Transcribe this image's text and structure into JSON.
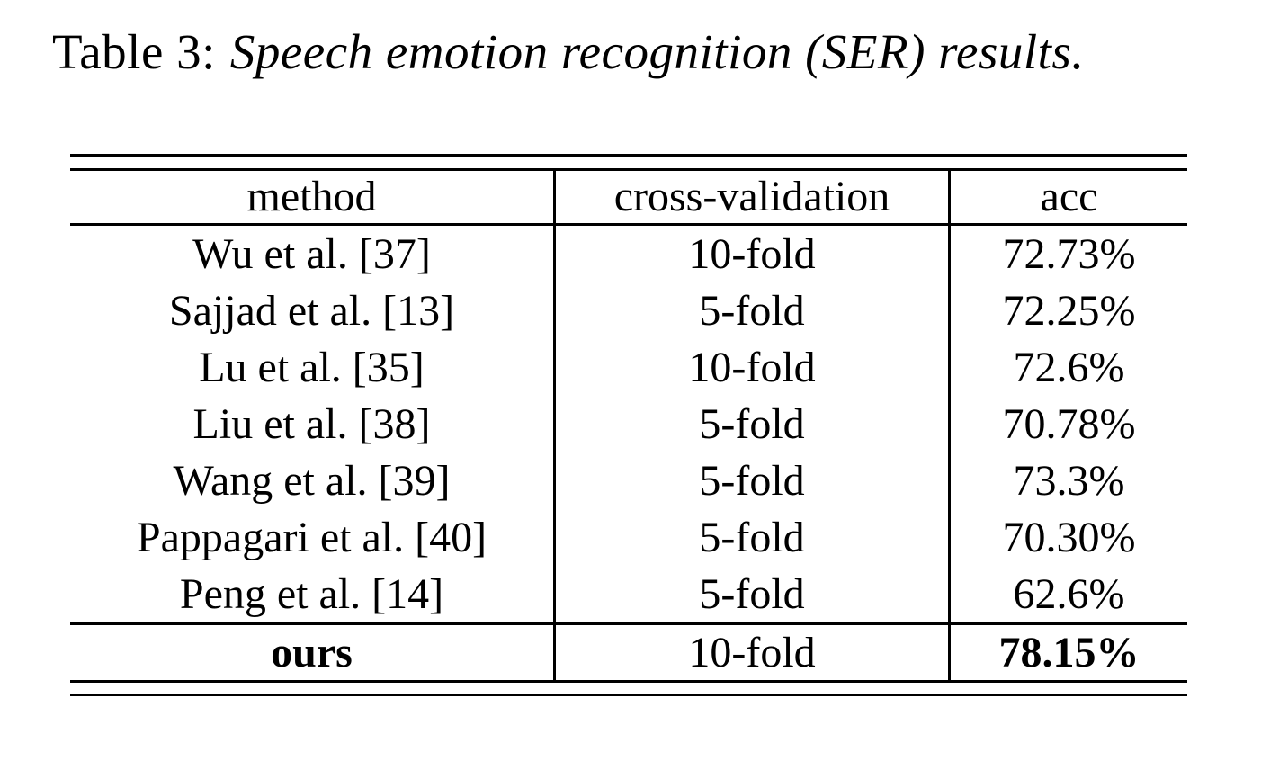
{
  "caption": {
    "prefix": "Table 3:",
    "italic": "Speech emotion recognition (SER) results."
  },
  "table": {
    "columns": [
      "method",
      "cross-validation",
      "acc"
    ],
    "rows": [
      {
        "method": "Wu et al. [37]",
        "cv": "10-fold",
        "acc": "72.73%"
      },
      {
        "method": "Sajjad et al. [13]",
        "cv": "5-fold",
        "acc": "72.25%"
      },
      {
        "method": "Lu et al. [35]",
        "cv": "10-fold",
        "acc": "72.6%"
      },
      {
        "method": "Liu et al. [38]",
        "cv": "5-fold",
        "acc": "70.78%"
      },
      {
        "method": "Wang et al. [39]",
        "cv": "5-fold",
        "acc": "73.3%"
      },
      {
        "method": "Pappagari et al. [40]",
        "cv": "5-fold",
        "acc": "70.30%"
      },
      {
        "method": "Peng et al. [14]",
        "cv": "5-fold",
        "acc": "62.6%"
      }
    ],
    "ours": {
      "method": "ours",
      "cv": "10-fold",
      "acc": "78.15%"
    }
  },
  "colors": {
    "text": "#000000",
    "background": "#ffffff",
    "rule": "#000000"
  }
}
